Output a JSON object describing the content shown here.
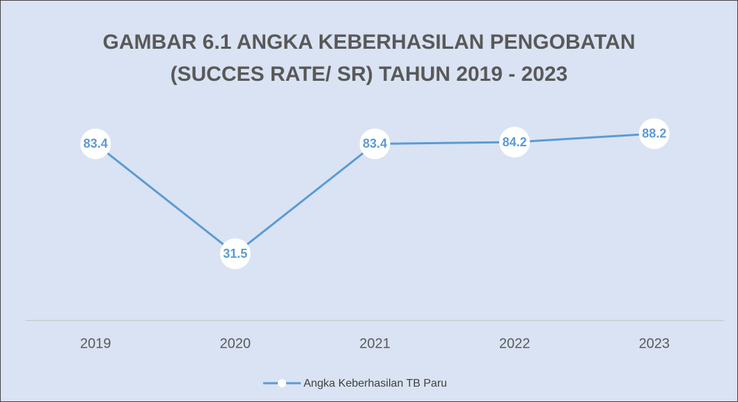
{
  "chart_data": {
    "type": "line",
    "title": "GAMBAR 6.1 ANGKA KEBERHASILAN PENGOBATAN (SUCCES RATE/ SR) TAHUN 2019 - 2023",
    "categories": [
      "2019",
      "2020",
      "2021",
      "2022",
      "2023"
    ],
    "series": [
      {
        "name": "Angka Keberhasilan TB Paru",
        "color": "#5b9bd5",
        "values": [
          83.4,
          31.5,
          83.4,
          84.2,
          88.2
        ]
      }
    ],
    "ylim": [
      0,
      100
    ],
    "legend": "bottom"
  }
}
